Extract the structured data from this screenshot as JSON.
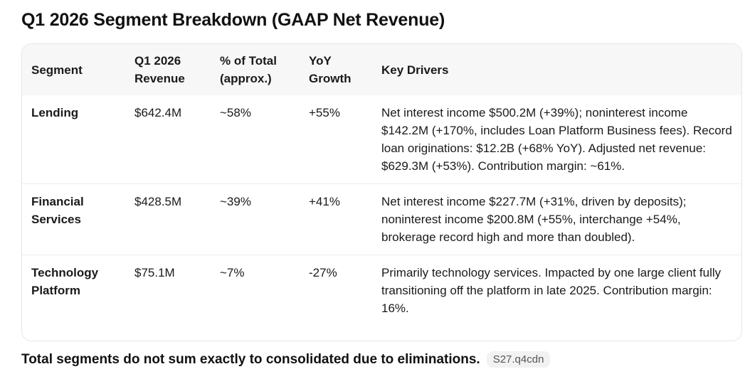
{
  "page": {
    "title": "Q1 2026 Segment Breakdown (GAAP Net Revenue)"
  },
  "table": {
    "headers": {
      "segment": "Segment",
      "revenue": "Q1 2026\nRevenue",
      "share": "% of Total\n(approx.)",
      "growth": "YoY\nGrowth",
      "drivers": "Key Drivers"
    },
    "rows": [
      {
        "segment": "Lending",
        "revenue": "$642.4M",
        "share": "~58%",
        "growth": "+55%",
        "drivers": "Net interest income $500.2M (+39%); noninterest income $142.2M (+170%, includes Loan Platform Business fees). Record loan originations: $12.2B (+68% YoY). Adjusted net revenue: $629.3M (+53%). Contribution margin: ~61%."
      },
      {
        "segment": "Financial Services",
        "revenue": "$428.5M",
        "share": "~39%",
        "growth": "+41%",
        "drivers": "Net interest income $227.7M (+31%, driven by deposits); noninterest income $200.8M (+55%, interchange +54%, brokerage record high and more than doubled)."
      },
      {
        "segment": "Technology Platform",
        "revenue": "$75.1M",
        "share": "~7%",
        "growth": "-27%",
        "drivers": "Primarily technology services. Impacted by one large client fully transitioning off the platform in late 2025. Contribution margin: 16%."
      }
    ]
  },
  "footer": {
    "note": "Total segments do not sum exactly to consolidated due to eliminations.",
    "source_tag": "S27.q4cdn"
  }
}
